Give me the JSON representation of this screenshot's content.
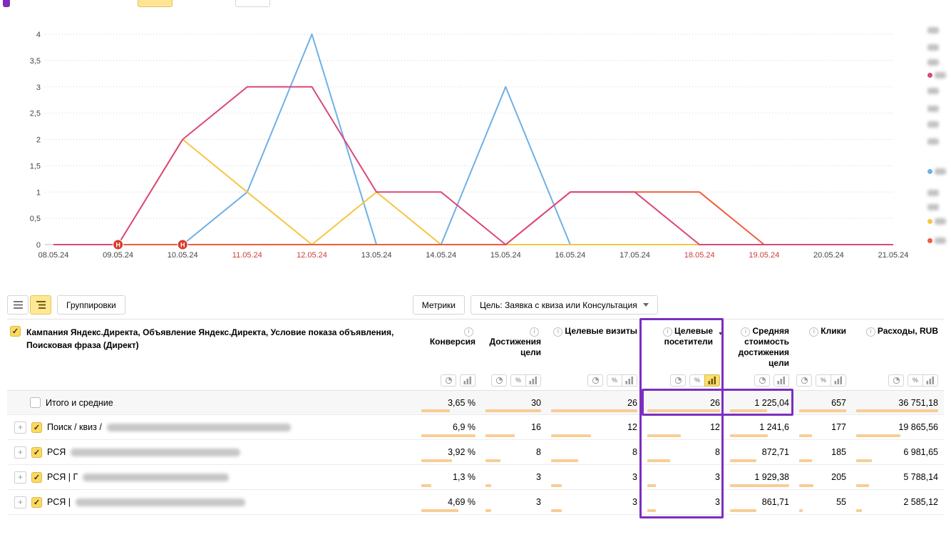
{
  "chart_data": {
    "type": "line",
    "x": [
      "08.05.24",
      "09.05.24",
      "10.05.24",
      "11.05.24",
      "12.05.24",
      "13.05.24",
      "14.05.24",
      "15.05.24",
      "16.05.24",
      "17.05.24",
      "18.05.24",
      "19.05.24",
      "20.05.24",
      "21.05.24"
    ],
    "ylim": [
      0,
      4
    ],
    "grid": true,
    "legend_position": "right",
    "series": [
      {
        "name": "series-blue",
        "color": "#6fb0e6",
        "values": [
          0,
          0,
          0,
          1,
          4,
          0,
          0,
          3,
          0,
          0,
          0,
          0,
          0,
          0
        ]
      },
      {
        "name": "series-yellow",
        "color": "#f5c643",
        "values": [
          0,
          0,
          2,
          1,
          0,
          1,
          0,
          0,
          0,
          0,
          0,
          0,
          0,
          0
        ]
      },
      {
        "name": "series-orange",
        "color": "#ef5d3e",
        "values": [
          0,
          0,
          0,
          0,
          0,
          0,
          0,
          0,
          1,
          1,
          1,
          0,
          0,
          0
        ]
      },
      {
        "name": "series-pink",
        "color": "#d9487b",
        "values": [
          0,
          0,
          2,
          3,
          3,
          1,
          1,
          0,
          1,
          1,
          0,
          0,
          0,
          0
        ]
      }
    ]
  },
  "chart": {
    "y_axis_labels": [
      "0",
      "0,5",
      "1",
      "1,5",
      "2",
      "2,5",
      "3",
      "3,5",
      "4"
    ],
    "weekend_date_indices": [
      3,
      4,
      10,
      11
    ],
    "annotation_markers": [
      {
        "label": "Н",
        "date_index": 1
      },
      {
        "label": "Н",
        "date_index": 2
      }
    ]
  },
  "legend_items": [
    {
      "y": 30,
      "color": null
    },
    {
      "y": 54,
      "color": null
    },
    {
      "y": 75,
      "color": null
    },
    {
      "y": 93,
      "color": "#d9487b"
    },
    {
      "y": 115,
      "color": null
    },
    {
      "y": 140,
      "color": null
    },
    {
      "y": 162,
      "color": null
    },
    {
      "y": 186,
      "color": null
    },
    {
      "y": 228,
      "color": "#6fb0e6"
    },
    {
      "y": 258,
      "color": null
    },
    {
      "y": 278,
      "color": null
    },
    {
      "y": 298,
      "color": "#f5c643"
    },
    {
      "y": 325,
      "color": "#ef5d3e"
    }
  ],
  "toolbar": {
    "groupings": "Группировки",
    "metrics": "Метрики",
    "goal": "Цель: Заявка с квиза или Консультация"
  },
  "table": {
    "dimension_header": "Кампания Яндекс.Директа, Объявление Яндекс.Директа, Условие показа объявления, Поисковая фраза (Директ)",
    "columns": [
      {
        "label": "Конверсия",
        "icons": [
          "pie",
          "bars"
        ],
        "sorted": false,
        "active_icon": -1
      },
      {
        "label": "Достижения цели",
        "icons": [
          "pie",
          "percent",
          "bars"
        ],
        "sorted": false,
        "active_icon": -1
      },
      {
        "label": "Целевые визиты",
        "icons": [
          "pie",
          "percent",
          "bars"
        ],
        "sorted": false,
        "active_icon": -1
      },
      {
        "label": "Целевые посетители",
        "icons": [
          "pie",
          "percent",
          "bars"
        ],
        "sorted": true,
        "active_icon": 2
      },
      {
        "label": "Средняя стоимость достижения цели",
        "icons": [
          "pie",
          "bars"
        ],
        "sorted": false,
        "active_icon": -1
      },
      {
        "label": "Клики",
        "icons": [
          "pie",
          "percent",
          "bars"
        ],
        "sorted": false,
        "active_icon": -1
      },
      {
        "label": "Расходы, RUB",
        "icons": [
          "pie",
          "percent",
          "bars"
        ],
        "sorted": false,
        "active_icon": -1
      }
    ],
    "rows": [
      {
        "label": "Итого и средние",
        "total": true,
        "checked": false,
        "expandable": false,
        "blur_width": 0,
        "values": [
          "3,65 %",
          "30",
          "26",
          "26",
          "1 225,04",
          "657",
          "36 751,18"
        ],
        "bars": [
          0.53,
          1,
          1,
          1,
          0.63,
          1,
          1
        ]
      },
      {
        "label": "Поиск / квиз /",
        "total": false,
        "checked": true,
        "expandable": true,
        "blur_width": 258,
        "values": [
          "6,9 %",
          "16",
          "12",
          "12",
          "1 241,6",
          "177",
          "19 865,56"
        ],
        "bars": [
          1,
          0.53,
          0.46,
          0.46,
          0.64,
          0.27,
          0.54
        ]
      },
      {
        "label": "РСЯ",
        "total": false,
        "checked": true,
        "expandable": true,
        "blur_width": 238,
        "values": [
          "3,92 %",
          "8",
          "8",
          "8",
          "872,71",
          "185",
          "6 981,65"
        ],
        "bars": [
          0.57,
          0.27,
          0.31,
          0.31,
          0.45,
          0.28,
          0.19
        ]
      },
      {
        "label": "РСЯ | Г",
        "total": false,
        "checked": true,
        "expandable": true,
        "blur_width": 205,
        "values": [
          "1,3 %",
          "3",
          "3",
          "3",
          "1 929,38",
          "205",
          "5 788,14"
        ],
        "bars": [
          0.19,
          0.1,
          0.12,
          0.12,
          1,
          0.31,
          0.16
        ]
      },
      {
        "label": "РСЯ |",
        "total": false,
        "checked": true,
        "expandable": true,
        "blur_width": 238,
        "values": [
          "4,69 %",
          "3",
          "3",
          "3",
          "861,71",
          "55",
          "2 585,12"
        ],
        "bars": [
          0.68,
          0.1,
          0.12,
          0.12,
          0.45,
          0.08,
          0.07
        ]
      }
    ]
  },
  "annotation": {
    "highlight_color": "#7d2ec0"
  }
}
